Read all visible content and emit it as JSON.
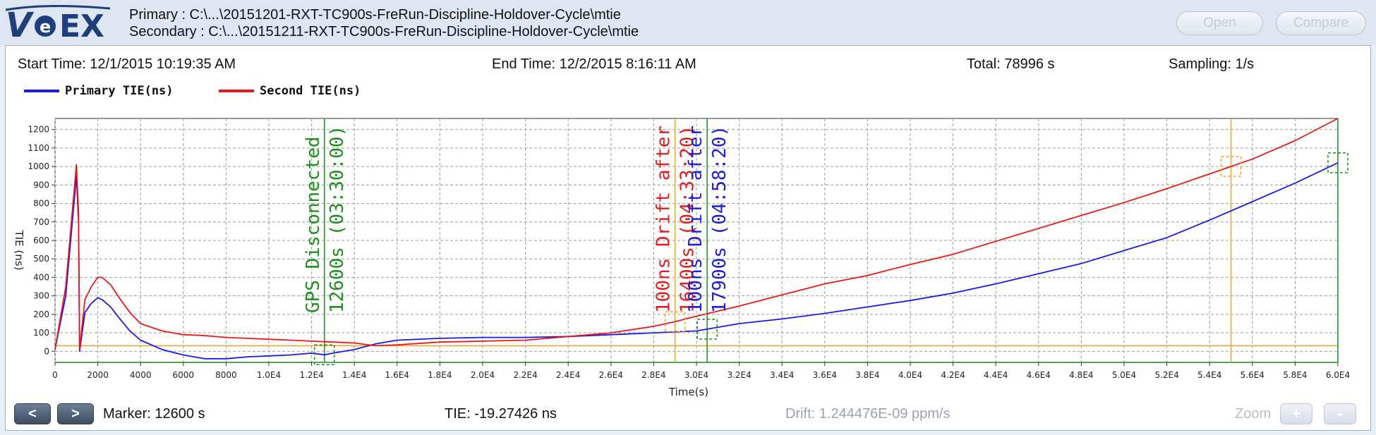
{
  "header": {
    "logo_text": "VeEX",
    "primary_path": "Primary : C:\\...\\20151201-RXT-TC900s-FreRun-Discipline-Holdover-Cycle\\mtie",
    "secondary_path": "Secondary : C:\\...\\20151211-RXT-TC900s-FreRun-Discipline-Holdover-Cycle\\mtie",
    "open_label": "Open",
    "compare_label": "Compare"
  },
  "info": {
    "start_time": "Start Time: 12/1/2015 10:19:35 AM",
    "end_time": "End Time: 12/2/2015 8:16:11 AM",
    "total": "Total: 78996 s",
    "sampling": "Sampling: 1/s"
  },
  "footer": {
    "prev_label": "<",
    "next_label": ">",
    "marker": "Marker: 12600 s",
    "tie": "TIE: -19.27426 ns",
    "drift": "Drift: 1.244476E-09 ppm/s",
    "zoom_label": "Zoom",
    "zoom_in_label": "+",
    "zoom_out_label": "-"
  },
  "colors": {
    "primary": "#1a1ae6",
    "secondary": "#e81818",
    "marker_orange": "#f5a020",
    "marker_green": "#1e8a1e",
    "annotation_green": "#1f8f1f",
    "annotation_red": "#e01c1c",
    "annotation_blue": "#2020d0"
  },
  "chart_data": {
    "type": "line",
    "xlabel": "Time(s)",
    "ylabel": "TIE (ns)",
    "xlim": [
      0,
      60000
    ],
    "ylim": [
      -60,
      1260
    ],
    "x_ticks": [
      0,
      2000,
      4000,
      6000,
      8000,
      10000,
      12000,
      14000,
      16000,
      18000,
      20000,
      22000,
      24000,
      26000,
      28000,
      30000,
      32000,
      34000,
      36000,
      38000,
      40000,
      42000,
      44000,
      46000,
      48000,
      50000,
      52000,
      54000,
      56000,
      58000,
      60000
    ],
    "x_tick_labels": [
      "0",
      "2000",
      "4000",
      "6000",
      "8000",
      "1.0E4",
      "1.2E4",
      "1.4E4",
      "1.6E4",
      "1.8E4",
      "2.0E4",
      "2.2E4",
      "2.4E4",
      "2.6E4",
      "2.8E4",
      "3.0E4",
      "3.2E4",
      "3.4E4",
      "3.6E4",
      "3.8E4",
      "4.0E4",
      "4.2E4",
      "4.4E4",
      "4.6E4",
      "4.8E4",
      "5.0E4",
      "5.2E4",
      "5.4E4",
      "5.6E4",
      "5.8E4",
      "6.0E4"
    ],
    "y_ticks": [
      0,
      100,
      200,
      300,
      400,
      500,
      600,
      700,
      800,
      900,
      1000,
      1100,
      1200
    ],
    "y_tick_labels": [
      "0",
      "100",
      "200",
      "300",
      "400",
      "500",
      "600",
      "700",
      "800",
      "900",
      "1000",
      "1100",
      "1200"
    ],
    "grid": true,
    "legend_position": "top-left",
    "series": [
      {
        "name": "Primary TIE(ns)",
        "color": "#1a1ae6",
        "x": [
          0,
          500,
          1000,
          1100,
          1150,
          1400,
          1700,
          2000,
          2200,
          2600,
          3000,
          3500,
          4000,
          5000,
          6000,
          7000,
          8000,
          9000,
          10000,
          11000,
          12000,
          12600,
          13000,
          14000,
          15000,
          16000,
          18000,
          20000,
          22000,
          24000,
          26000,
          28000,
          30000,
          31000,
          32000,
          34000,
          36000,
          38000,
          40000,
          42000,
          44000,
          46000,
          48000,
          50000,
          52000,
          54000,
          56000,
          58000,
          60000
        ],
        "y": [
          10,
          300,
          950,
          700,
          0,
          210,
          260,
          290,
          280,
          240,
          180,
          110,
          60,
          10,
          -20,
          -40,
          -40,
          -30,
          -25,
          -20,
          -10,
          -19,
          -10,
          10,
          40,
          60,
          70,
          75,
          75,
          80,
          90,
          100,
          110,
          130,
          150,
          175,
          205,
          240,
          275,
          315,
          365,
          420,
          475,
          545,
          615,
          710,
          810,
          910,
          1020
        ]
      },
      {
        "name": "Second TIE(ns)",
        "color": "#e81818",
        "x": [
          0,
          500,
          1000,
          1100,
          1150,
          1400,
          1700,
          2000,
          2200,
          2600,
          3000,
          3500,
          4000,
          5000,
          6000,
          7000,
          8000,
          9000,
          10000,
          11000,
          12000,
          13000,
          14000,
          15000,
          16000,
          18000,
          20000,
          22000,
          24000,
          26000,
          28000,
          29000,
          30000,
          32000,
          34000,
          36000,
          38000,
          40000,
          42000,
          44000,
          46000,
          48000,
          50000,
          52000,
          54000,
          56000,
          58000,
          60000
        ],
        "y": [
          10,
          350,
          1010,
          750,
          10,
          280,
          350,
          400,
          400,
          360,
          290,
          210,
          150,
          110,
          90,
          85,
          75,
          70,
          65,
          60,
          55,
          50,
          45,
          30,
          35,
          50,
          55,
          60,
          80,
          100,
          135,
          160,
          190,
          245,
          305,
          365,
          410,
          470,
          525,
          595,
          665,
          735,
          805,
          880,
          960,
          1040,
          1140,
          1260
        ]
      }
    ],
    "markers": [
      {
        "x": 12600,
        "color": "#1e8a1e",
        "label": "GPS  Disconnected",
        "label2": "12600s (03:30:00)",
        "label_color": "#1f8f1f"
      },
      {
        "x": 29000,
        "color": "#f5a020",
        "label": "100ns Drift after",
        "label2": "16400s (04:33:20)",
        "label_color": "#e01c1c"
      },
      {
        "x": 30500,
        "color": "#1e8a1e",
        "label": "100ns Drift after",
        "label2": "17900s (04:58:20)",
        "label_color": "#2020d0"
      },
      {
        "x": 55000,
        "color": "#f5a020"
      },
      {
        "x": 60000,
        "color": "#1e8a1e"
      }
    ],
    "horizontal_lines": [
      {
        "y": 30,
        "color": "#f5a020"
      },
      {
        "y": -60,
        "color": "#1e8a1e"
      }
    ]
  }
}
